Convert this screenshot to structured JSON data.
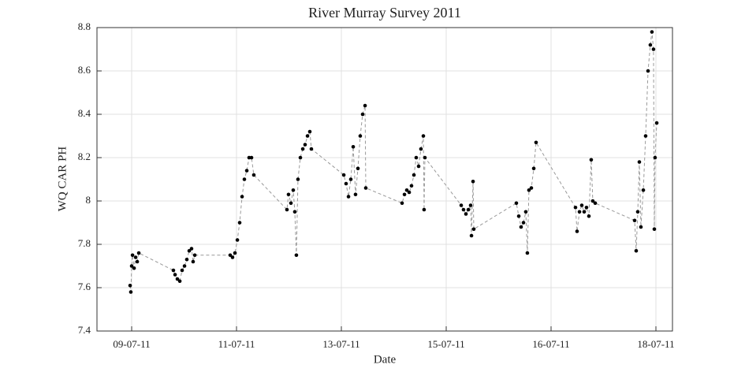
{
  "chart_data": {
    "type": "line",
    "title": "River Murray Survey 2011",
    "x_label": "Date",
    "y_label": "WQ CAR PH",
    "x": [
      -0.015,
      -0.008,
      0,
      0.008,
      0.023,
      0.038,
      0.053,
      0.068,
      0.398,
      0.414,
      0.436,
      0.459,
      0.481,
      0.504,
      0.526,
      0.549,
      0.571,
      0.586,
      0.602,
      0.94,
      0.962,
      0.985,
      1.008,
      1.03,
      1.053,
      1.075,
      1.098,
      1.12,
      1.143,
      1.165,
      1.481,
      1.496,
      1.519,
      1.541,
      1.556,
      1.571,
      1.586,
      1.609,
      1.632,
      1.654,
      1.677,
      1.699,
      1.714,
      2.023,
      2.045,
      2.068,
      2.09,
      2.113,
      2.135,
      2.158,
      2.18,
      2.203,
      2.226,
      2.233,
      2.579,
      2.602,
      2.624,
      2.647,
      2.669,
      2.692,
      2.714,
      2.737,
      2.759,
      2.782,
      2.789,
      2.797,
      3.143,
      3.165,
      3.188,
      3.211,
      3.233,
      3.241,
      3.256,
      3.263,
      3.669,
      3.692,
      3.714,
      3.737,
      3.759,
      3.774,
      3.789,
      3.812,
      3.835,
      3.857,
      4.233,
      4.248,
      4.271,
      4.293,
      4.316,
      4.338,
      4.361,
      4.383,
      4.398,
      4.421,
      4.797,
      4.812,
      4.827,
      4.842,
      4.857,
      4.88,
      4.902,
      4.925,
      4.947,
      4.962,
      4.977,
      4.985,
      4.992,
      5.008
    ],
    "values": [
      7.61,
      7.58,
      7.7,
      7.75,
      7.69,
      7.74,
      7.72,
      7.76,
      7.68,
      7.66,
      7.64,
      7.63,
      7.68,
      7.7,
      7.73,
      7.77,
      7.78,
      7.72,
      7.75,
      7.75,
      7.74,
      7.76,
      7.82,
      7.9,
      8.02,
      8.1,
      8.14,
      8.2,
      8.2,
      8.12,
      7.96,
      8.03,
      7.99,
      8.05,
      7.95,
      7.75,
      8.1,
      8.2,
      8.24,
      8.26,
      8.3,
      8.32,
      8.24,
      8.12,
      8.08,
      8.02,
      8.1,
      8.25,
      8.03,
      8.15,
      8.3,
      8.4,
      8.44,
      8.06,
      7.99,
      8.03,
      8.05,
      8.04,
      8.07,
      8.12,
      8.2,
      8.16,
      8.24,
      8.3,
      7.96,
      8.2,
      7.98,
      7.96,
      7.94,
      7.96,
      7.98,
      7.84,
      8.09,
      7.87,
      7.99,
      7.93,
      7.88,
      7.9,
      7.95,
      7.76,
      8.05,
      8.06,
      8.15,
      8.27,
      7.97,
      7.86,
      7.95,
      7.98,
      7.95,
      7.97,
      7.93,
      8.19,
      8.0,
      7.99,
      7.91,
      7.77,
      7.95,
      8.18,
      7.88,
      8.05,
      8.3,
      8.6,
      8.72,
      8.78,
      8.7,
      7.87,
      8.2,
      8.36
    ],
    "color": "#999999",
    "marker_color": "#000000",
    "xlim": [
      -0.331,
      5.158
    ],
    "xticks": [
      {
        "value": 0,
        "label": "09-07-11"
      },
      {
        "value": 1,
        "label": "11-07-11"
      },
      {
        "value": 2,
        "label": "13-07-11"
      },
      {
        "value": 3,
        "label": "15-07-11"
      },
      {
        "value": 4,
        "label": "16-07-11"
      },
      {
        "value": 5,
        "label": "18-07-11"
      }
    ],
    "ylim": [
      7.4,
      8.8
    ],
    "yticks": [
      7.4,
      7.6,
      7.8,
      8,
      8.2,
      8.4,
      8.6,
      8.8
    ],
    "grid": true
  }
}
